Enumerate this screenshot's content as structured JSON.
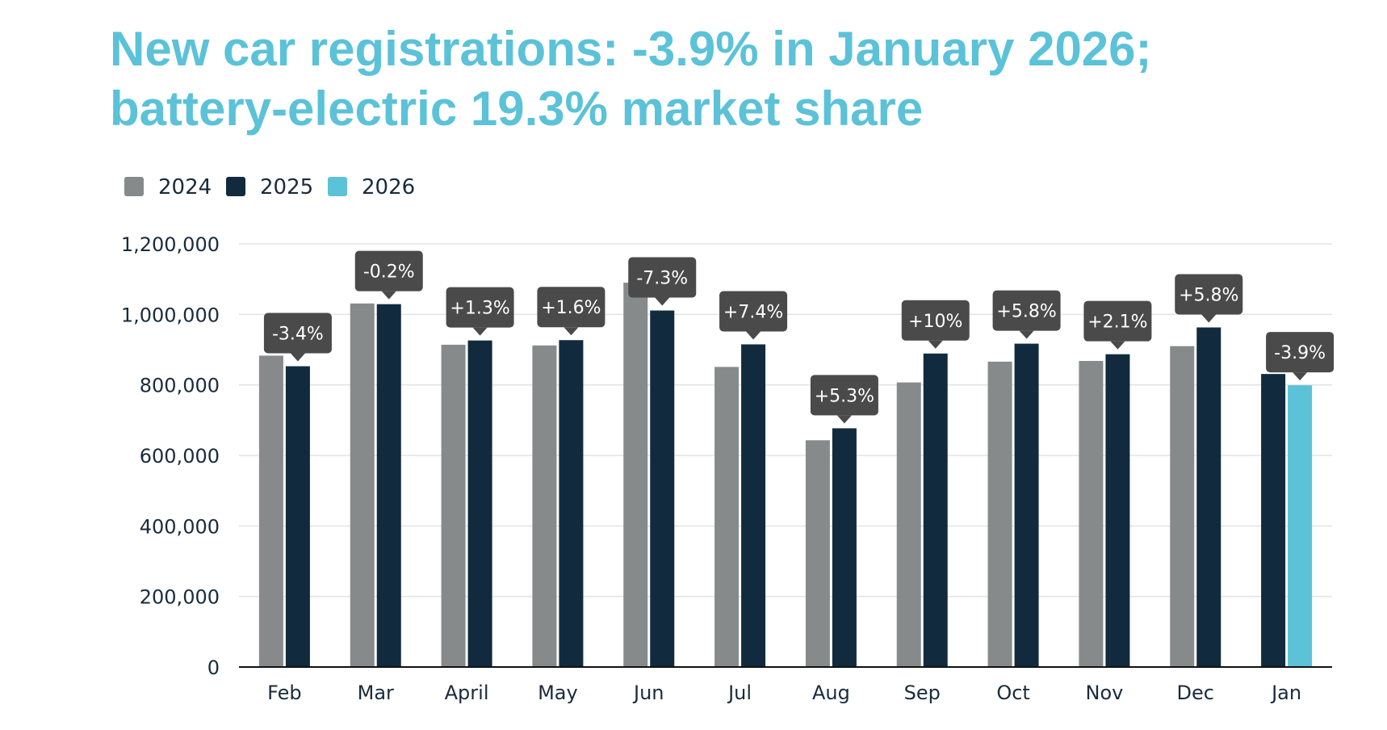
{
  "title": {
    "line1": "New car registrations: -3.9% in January 2026;",
    "line2": "battery-electric 19.3% market share"
  },
  "chart_data": {
    "type": "bar",
    "categories": [
      "Feb",
      "Mar",
      "April",
      "May",
      "Jun",
      "Jul",
      "Aug",
      "Sep",
      "Oct",
      "Nov",
      "Dec",
      "Jan"
    ],
    "series": [
      {
        "name": "2024",
        "color": "#878a8b",
        "values": [
          883000,
          1031000,
          914000,
          912000,
          1090000,
          851000,
          643000,
          807000,
          866000,
          868000,
          910000,
          null
        ]
      },
      {
        "name": "2025",
        "color": "#112a3e",
        "values": [
          853000,
          1029000,
          926000,
          927000,
          1011000,
          915000,
          677000,
          889000,
          917000,
          887000,
          963000,
          831000
        ]
      },
      {
        "name": "2026",
        "color": "#5bc2d8",
        "values": [
          null,
          null,
          null,
          null,
          null,
          null,
          null,
          null,
          null,
          null,
          null,
          799000
        ]
      }
    ],
    "change_labels": [
      "-3.4%",
      "-0.2%",
      "+1.3%",
      "+1.6%",
      "-7.3%",
      "+7.4%",
      "+5.3%",
      "+10%",
      "+5.8%",
      "+2.1%",
      "+5.8%",
      "-3.9%"
    ],
    "y_ticks": [
      "0",
      "200,000",
      "400,000",
      "600,000",
      "800,000",
      "1,000,000",
      "1,200,000"
    ],
    "ylim": [
      0,
      1200000
    ],
    "grid": true,
    "legend_position": "top-left",
    "callout_color": "#4a4a4a",
    "xlabel": "",
    "ylabel": ""
  }
}
